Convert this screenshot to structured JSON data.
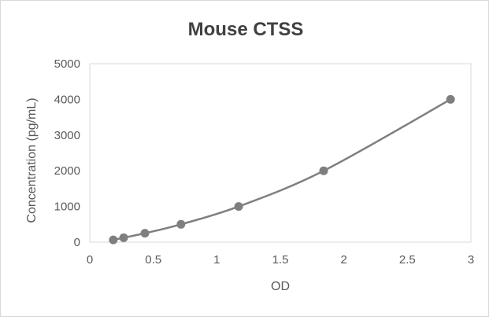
{
  "chart_data": {
    "type": "scatter",
    "title": "Mouse CTSS",
    "xlabel": "OD",
    "ylabel": "Concentration (pg/mL)",
    "xlim": [
      0,
      3
    ],
    "ylim": [
      0,
      5000
    ],
    "xticks": [
      "0",
      "0.5",
      "1",
      "1.5",
      "2",
      "2.5",
      "3"
    ],
    "yticks": [
      "0",
      "1000",
      "2000",
      "3000",
      "4000",
      "5000"
    ],
    "grid": false,
    "legend": "none",
    "trendline": "smooth",
    "color": "#7f7f7f",
    "x": [
      0.185,
      0.267,
      0.434,
      0.718,
      1.172,
      1.841,
      2.84
    ],
    "y": [
      62.5,
      125,
      250,
      500,
      1000,
      2000,
      4000
    ]
  }
}
